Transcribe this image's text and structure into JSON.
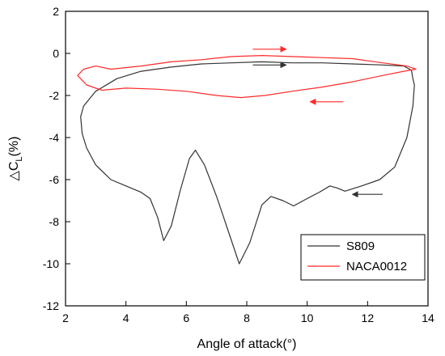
{
  "chart_data": {
    "type": "line",
    "title": "",
    "xlabel": "Angle of attack(°)",
    "ylabel": {
      "main": "△C",
      "sub": "L",
      "suffix": "(%)"
    },
    "xlim": [
      2,
      14
    ],
    "ylim": [
      -12,
      2
    ],
    "xticks": [
      2,
      4,
      6,
      8,
      10,
      12,
      14
    ],
    "yticks": [
      2,
      0,
      -2,
      -4,
      -6,
      -8,
      -10,
      -12
    ],
    "grid": false,
    "legend_position": "bottom-right",
    "series": [
      {
        "name": "S809",
        "color": "#333333",
        "points": [
          [
            13.5,
            -1.2
          ],
          [
            13.45,
            -0.8
          ],
          [
            13.2,
            -0.6
          ],
          [
            12.5,
            -0.55
          ],
          [
            11.5,
            -0.5
          ],
          [
            10.5,
            -0.45
          ],
          [
            9.5,
            -0.45
          ],
          [
            8.5,
            -0.4
          ],
          [
            7.5,
            -0.45
          ],
          [
            6.5,
            -0.5
          ],
          [
            5.5,
            -0.65
          ],
          [
            4.5,
            -0.85
          ],
          [
            3.7,
            -1.2
          ],
          [
            3.0,
            -1.8
          ],
          [
            2.6,
            -2.5
          ],
          [
            2.5,
            -3.0
          ],
          [
            2.55,
            -3.8
          ],
          [
            2.7,
            -4.5
          ],
          [
            3.0,
            -5.3
          ],
          [
            3.5,
            -6.0
          ],
          [
            4.0,
            -6.3
          ],
          [
            4.5,
            -6.6
          ],
          [
            4.8,
            -6.9
          ],
          [
            5.05,
            -7.8
          ],
          [
            5.25,
            -8.9
          ],
          [
            5.5,
            -8.2
          ],
          [
            5.8,
            -6.5
          ],
          [
            6.1,
            -5.0
          ],
          [
            6.3,
            -4.6
          ],
          [
            6.6,
            -5.3
          ],
          [
            7.0,
            -6.8
          ],
          [
            7.4,
            -8.5
          ],
          [
            7.75,
            -10.0
          ],
          [
            8.1,
            -9.0
          ],
          [
            8.5,
            -7.2
          ],
          [
            8.8,
            -6.8
          ],
          [
            9.2,
            -7.0
          ],
          [
            9.55,
            -7.25
          ],
          [
            10.0,
            -6.9
          ],
          [
            10.4,
            -6.6
          ],
          [
            10.75,
            -6.3
          ],
          [
            11.0,
            -6.4
          ],
          [
            11.25,
            -6.55
          ],
          [
            11.8,
            -6.3
          ],
          [
            12.4,
            -6.0
          ],
          [
            12.9,
            -5.4
          ],
          [
            13.3,
            -4.0
          ],
          [
            13.5,
            -2.5
          ],
          [
            13.55,
            -1.5
          ],
          [
            13.5,
            -1.2
          ]
        ]
      },
      {
        "name": "NACA0012",
        "color": "#ff2a2a",
        "points": [
          [
            13.3,
            -0.6
          ],
          [
            12.5,
            -0.45
          ],
          [
            11.5,
            -0.25
          ],
          [
            10.5,
            -0.2
          ],
          [
            9.5,
            -0.15
          ],
          [
            8.5,
            -0.1
          ],
          [
            7.5,
            -0.15
          ],
          [
            6.5,
            -0.3
          ],
          [
            5.5,
            -0.4
          ],
          [
            4.5,
            -0.6
          ],
          [
            3.5,
            -0.75
          ],
          [
            3.0,
            -0.6
          ],
          [
            2.6,
            -0.75
          ],
          [
            2.4,
            -1.05
          ],
          [
            2.7,
            -1.5
          ],
          [
            3.2,
            -1.75
          ],
          [
            4.0,
            -1.65
          ],
          [
            5.0,
            -1.7
          ],
          [
            6.0,
            -1.8
          ],
          [
            7.0,
            -2.0
          ],
          [
            7.8,
            -2.1
          ],
          [
            8.6,
            -2.0
          ],
          [
            9.5,
            -1.8
          ],
          [
            10.5,
            -1.6
          ],
          [
            11.5,
            -1.35
          ],
          [
            12.5,
            -1.05
          ],
          [
            13.2,
            -0.85
          ],
          [
            13.6,
            -0.75
          ],
          [
            13.3,
            -0.6
          ]
        ]
      }
    ],
    "annotations": [
      {
        "type": "arrow",
        "series": "NACA0012",
        "direction": "right",
        "x": [
          8.2,
          9.3
        ],
        "y": 0.2
      },
      {
        "type": "arrow",
        "series": "NACA0012",
        "direction": "left",
        "x": [
          11.2,
          10.1
        ],
        "y": -2.3
      },
      {
        "type": "arrow",
        "series": "S809",
        "direction": "right",
        "x": [
          8.2,
          9.3
        ],
        "y": -0.55
      },
      {
        "type": "arrow",
        "series": "S809",
        "direction": "left",
        "x": [
          12.5,
          11.5
        ],
        "y": -6.7
      }
    ]
  }
}
